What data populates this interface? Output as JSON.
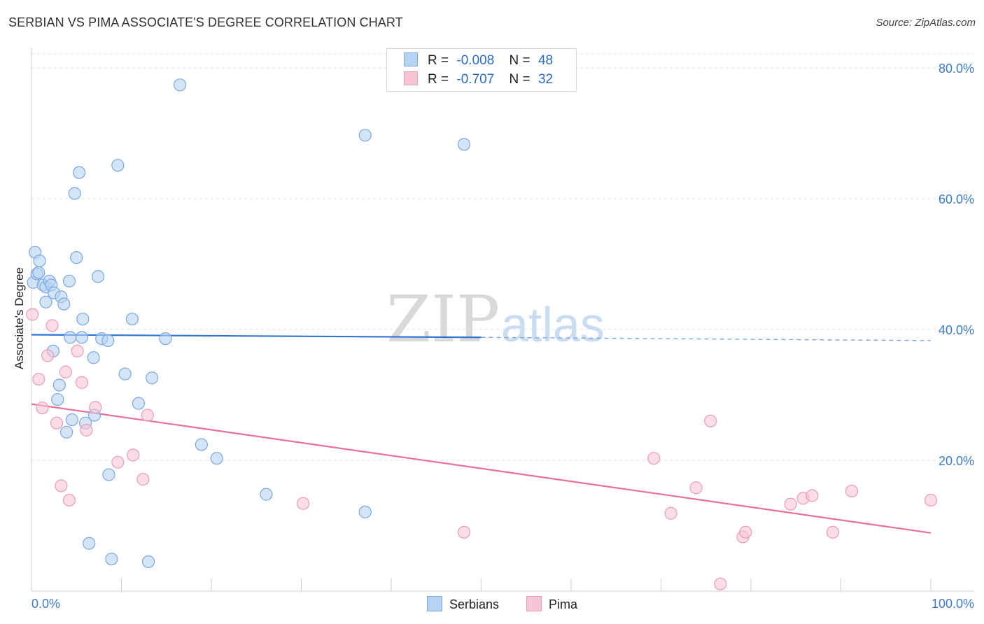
{
  "header": {
    "title": "SERBIAN VS PIMA ASSOCIATE'S DEGREE CORRELATION CHART",
    "source": "Source: ZipAtlas.com"
  },
  "watermark": {
    "zip": "ZIP",
    "atlas": "atlas"
  },
  "legend_top": {
    "rows": [
      {
        "r_label": "R =",
        "r_value": "-0.008",
        "n_label": "N =",
        "n_value": "48",
        "color": "#9ec3ee"
      },
      {
        "r_label": "R =",
        "r_value": "-0.707",
        "n_label": "N =",
        "n_value": "32",
        "color": "#f4b3c7"
      }
    ]
  },
  "legend_bottom": {
    "items": [
      {
        "label": "Serbians",
        "color": "#9ec3ee"
      },
      {
        "label": "Pima",
        "color": "#f4b3c7"
      }
    ]
  },
  "chart_data": {
    "type": "scatter",
    "title": "SERBIAN VS PIMA ASSOCIATE'S DEGREE CORRELATION CHART",
    "xlabel": "",
    "ylabel": "Associate's Degree",
    "xlim": [
      0,
      100
    ],
    "ylim": [
      0,
      80
    ],
    "x_tick_labels": [
      "0.0%",
      "100.0%"
    ],
    "y_ticks": [
      20,
      40,
      60,
      80
    ],
    "y_tick_labels": [
      "20.0%",
      "40.0%",
      "60.0%",
      "80.0%"
    ],
    "grid": true,
    "colors": {
      "serbians": "#2d74d6",
      "pima": "#e8709a",
      "serbians_fill": "#b7d3f3",
      "pima_fill": "#f7c6d5"
    },
    "series": [
      {
        "name": "Serbians",
        "points": [
          [
            0.2,
            47.2
          ],
          [
            0.4,
            51.8
          ],
          [
            0.6,
            48.5
          ],
          [
            0.8,
            48.7
          ],
          [
            0.9,
            50.5
          ],
          [
            1.3,
            46.8
          ],
          [
            1.6,
            46.5
          ],
          [
            1.6,
            44.2
          ],
          [
            2.0,
            47.4
          ],
          [
            2.2,
            46.8
          ],
          [
            2.4,
            36.7
          ],
          [
            2.5,
            45.6
          ],
          [
            2.9,
            29.3
          ],
          [
            3.1,
            31.5
          ],
          [
            3.3,
            45.0
          ],
          [
            3.6,
            43.9
          ],
          [
            3.9,
            24.3
          ],
          [
            4.2,
            47.4
          ],
          [
            4.3,
            38.8
          ],
          [
            4.5,
            26.2
          ],
          [
            4.8,
            60.8
          ],
          [
            5.0,
            51.0
          ],
          [
            5.3,
            64.0
          ],
          [
            5.6,
            38.8
          ],
          [
            5.7,
            41.6
          ],
          [
            6.0,
            25.7
          ],
          [
            6.4,
            7.3
          ],
          [
            6.9,
            35.7
          ],
          [
            7.0,
            26.9
          ],
          [
            7.4,
            48.1
          ],
          [
            7.8,
            38.6
          ],
          [
            8.5,
            38.3
          ],
          [
            8.6,
            17.8
          ],
          [
            8.9,
            4.9
          ],
          [
            9.6,
            65.1
          ],
          [
            10.4,
            33.2
          ],
          [
            11.2,
            41.6
          ],
          [
            11.9,
            28.7
          ],
          [
            13.0,
            4.5
          ],
          [
            13.4,
            32.6
          ],
          [
            14.9,
            38.6
          ],
          [
            16.5,
            77.4
          ],
          [
            18.9,
            22.4
          ],
          [
            20.6,
            20.3
          ],
          [
            26.1,
            14.8
          ],
          [
            37.1,
            69.7
          ],
          [
            37.1,
            12.1
          ],
          [
            48.1,
            68.3
          ]
        ],
        "trend": {
          "x0": 0,
          "y0": 39.2,
          "x1": 50,
          "y1": 38.8,
          "dashed_to_x": 100,
          "dashed_to_y": 38.3
        }
      },
      {
        "name": "Pima",
        "points": [
          [
            0.1,
            42.3
          ],
          [
            0.8,
            32.4
          ],
          [
            1.2,
            28.0
          ],
          [
            1.8,
            36.0
          ],
          [
            2.3,
            40.6
          ],
          [
            2.8,
            25.7
          ],
          [
            3.3,
            16.1
          ],
          [
            3.8,
            33.5
          ],
          [
            4.2,
            13.9
          ],
          [
            5.1,
            36.7
          ],
          [
            5.6,
            31.9
          ],
          [
            6.1,
            24.6
          ],
          [
            7.1,
            28.1
          ],
          [
            9.6,
            19.7
          ],
          [
            11.3,
            20.8
          ],
          [
            12.4,
            17.1
          ],
          [
            12.9,
            26.9
          ],
          [
            30.2,
            13.4
          ],
          [
            48.1,
            9.0
          ],
          [
            69.2,
            20.3
          ],
          [
            71.1,
            11.9
          ],
          [
            73.9,
            15.8
          ],
          [
            75.5,
            26.0
          ],
          [
            76.6,
            1.1
          ],
          [
            79.1,
            8.3
          ],
          [
            79.4,
            9.0
          ],
          [
            84.4,
            13.3
          ],
          [
            85.8,
            14.2
          ],
          [
            86.8,
            14.6
          ],
          [
            89.1,
            9.0
          ],
          [
            91.2,
            15.3
          ],
          [
            100.0,
            13.9
          ]
        ],
        "trend": {
          "x0": 0,
          "y0": 28.6,
          "x1": 100,
          "y1": 8.9
        }
      }
    ]
  }
}
